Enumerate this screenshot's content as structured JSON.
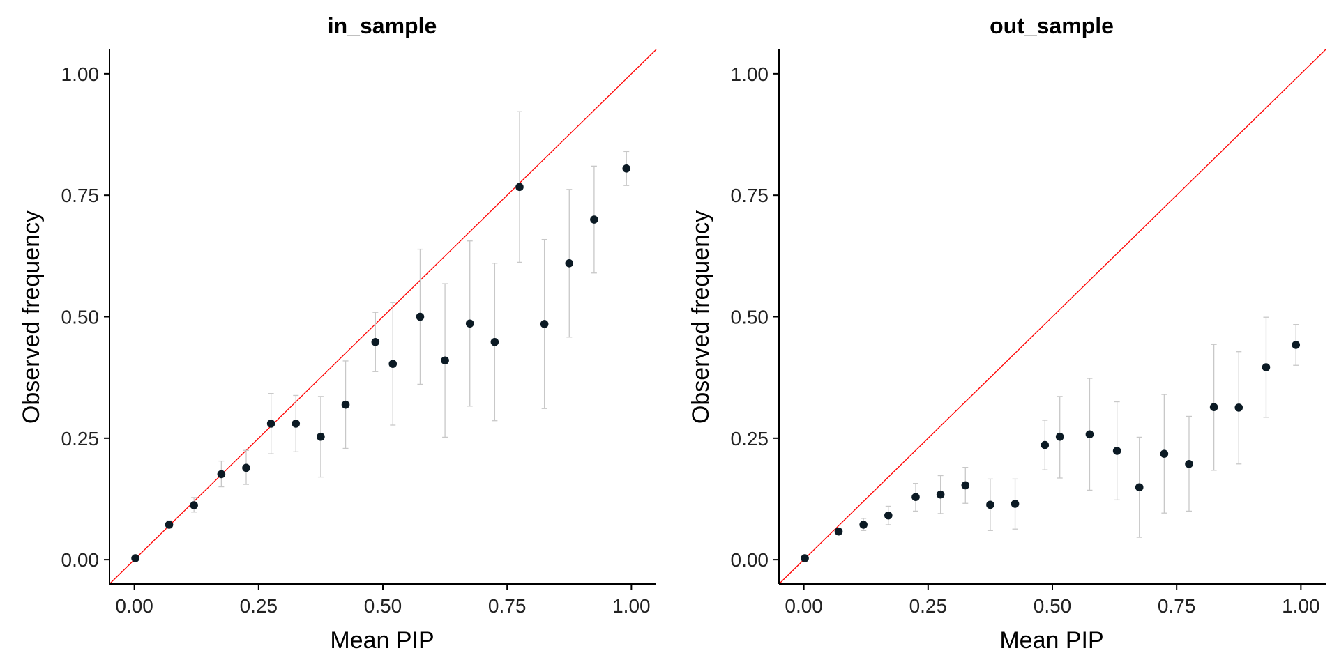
{
  "chart_data": [
    {
      "type": "scatter",
      "title": "in_sample",
      "xlabel": "Mean PIP",
      "ylabel": "Observed frequency",
      "xlim": [
        -0.05,
        1.05
      ],
      "ylim": [
        -0.05,
        1.05
      ],
      "xticks": [
        0.0,
        0.25,
        0.5,
        0.75,
        1.0
      ],
      "xtick_labels": [
        "0.00",
        "0.25",
        "0.50",
        "0.75",
        "1.00"
      ],
      "yticks": [
        0.0,
        0.25,
        0.5,
        0.75,
        1.0
      ],
      "ytick_labels": [
        "0.00",
        "0.25",
        "0.50",
        "0.75",
        "1.00"
      ],
      "grid": false,
      "reference_line": {
        "from": [
          0,
          0
        ],
        "to": [
          1,
          1
        ],
        "color": "#ff0000"
      },
      "error_bar_color": "#c8c8c8",
      "point_color": "#0b1a24",
      "points": [
        {
          "x": 0.002,
          "y": 0.003,
          "lo": 0.002,
          "hi": 0.004
        },
        {
          "x": 0.07,
          "y": 0.072,
          "lo": 0.065,
          "hi": 0.08
        },
        {
          "x": 0.12,
          "y": 0.112,
          "lo": 0.098,
          "hi": 0.128
        },
        {
          "x": 0.175,
          "y": 0.176,
          "lo": 0.15,
          "hi": 0.203
        },
        {
          "x": 0.225,
          "y": 0.189,
          "lo": 0.155,
          "hi": 0.225
        },
        {
          "x": 0.275,
          "y": 0.28,
          "lo": 0.218,
          "hi": 0.342
        },
        {
          "x": 0.325,
          "y": 0.28,
          "lo": 0.222,
          "hi": 0.338
        },
        {
          "x": 0.375,
          "y": 0.253,
          "lo": 0.17,
          "hi": 0.336
        },
        {
          "x": 0.425,
          "y": 0.319,
          "lo": 0.229,
          "hi": 0.409
        },
        {
          "x": 0.485,
          "y": 0.448,
          "lo": 0.387,
          "hi": 0.509
        },
        {
          "x": 0.52,
          "y": 0.403,
          "lo": 0.277,
          "hi": 0.529
        },
        {
          "x": 0.575,
          "y": 0.5,
          "lo": 0.361,
          "hi": 0.639
        },
        {
          "x": 0.625,
          "y": 0.41,
          "lo": 0.252,
          "hi": 0.568
        },
        {
          "x": 0.675,
          "y": 0.486,
          "lo": 0.316,
          "hi": 0.656
        },
        {
          "x": 0.725,
          "y": 0.448,
          "lo": 0.286,
          "hi": 0.61
        },
        {
          "x": 0.775,
          "y": 0.767,
          "lo": 0.612,
          "hi": 0.922
        },
        {
          "x": 0.825,
          "y": 0.485,
          "lo": 0.311,
          "hi": 0.659
        },
        {
          "x": 0.875,
          "y": 0.61,
          "lo": 0.458,
          "hi": 0.762
        },
        {
          "x": 0.925,
          "y": 0.7,
          "lo": 0.59,
          "hi": 0.81
        },
        {
          "x": 0.99,
          "y": 0.805,
          "lo": 0.77,
          "hi": 0.84
        }
      ]
    },
    {
      "type": "scatter",
      "title": "out_sample",
      "xlabel": "Mean PIP",
      "ylabel": "Observed frequency",
      "xlim": [
        -0.05,
        1.05
      ],
      "ylim": [
        -0.05,
        1.05
      ],
      "xticks": [
        0.0,
        0.25,
        0.5,
        0.75,
        1.0
      ],
      "xtick_labels": [
        "0.00",
        "0.25",
        "0.50",
        "0.75",
        "1.00"
      ],
      "yticks": [
        0.0,
        0.25,
        0.5,
        0.75,
        1.0
      ],
      "ytick_labels": [
        "0.00",
        "0.25",
        "0.50",
        "0.75",
        "1.00"
      ],
      "grid": false,
      "reference_line": {
        "from": [
          0,
          0
        ],
        "to": [
          1,
          1
        ],
        "color": "#ff0000"
      },
      "error_bar_color": "#c8c8c8",
      "point_color": "#0b1a24",
      "points": [
        {
          "x": 0.002,
          "y": 0.003,
          "lo": 0.002,
          "hi": 0.004
        },
        {
          "x": 0.07,
          "y": 0.058,
          "lo": 0.052,
          "hi": 0.064
        },
        {
          "x": 0.12,
          "y": 0.072,
          "lo": 0.06,
          "hi": 0.085
        },
        {
          "x": 0.17,
          "y": 0.091,
          "lo": 0.072,
          "hi": 0.11
        },
        {
          "x": 0.225,
          "y": 0.129,
          "lo": 0.1,
          "hi": 0.157
        },
        {
          "x": 0.275,
          "y": 0.134,
          "lo": 0.095,
          "hi": 0.173
        },
        {
          "x": 0.325,
          "y": 0.153,
          "lo": 0.116,
          "hi": 0.19
        },
        {
          "x": 0.375,
          "y": 0.113,
          "lo": 0.06,
          "hi": 0.166
        },
        {
          "x": 0.425,
          "y": 0.115,
          "lo": 0.063,
          "hi": 0.166
        },
        {
          "x": 0.485,
          "y": 0.236,
          "lo": 0.185,
          "hi": 0.287
        },
        {
          "x": 0.515,
          "y": 0.253,
          "lo": 0.168,
          "hi": 0.336
        },
        {
          "x": 0.575,
          "y": 0.258,
          "lo": 0.143,
          "hi": 0.373
        },
        {
          "x": 0.63,
          "y": 0.224,
          "lo": 0.123,
          "hi": 0.325
        },
        {
          "x": 0.675,
          "y": 0.149,
          "lo": 0.046,
          "hi": 0.252
        },
        {
          "x": 0.725,
          "y": 0.218,
          "lo": 0.096,
          "hi": 0.34
        },
        {
          "x": 0.775,
          "y": 0.197,
          "lo": 0.1,
          "hi": 0.295
        },
        {
          "x": 0.825,
          "y": 0.314,
          "lo": 0.184,
          "hi": 0.443
        },
        {
          "x": 0.875,
          "y": 0.313,
          "lo": 0.197,
          "hi": 0.428
        },
        {
          "x": 0.93,
          "y": 0.396,
          "lo": 0.293,
          "hi": 0.499
        },
        {
          "x": 0.99,
          "y": 0.442,
          "lo": 0.4,
          "hi": 0.484
        }
      ]
    }
  ]
}
